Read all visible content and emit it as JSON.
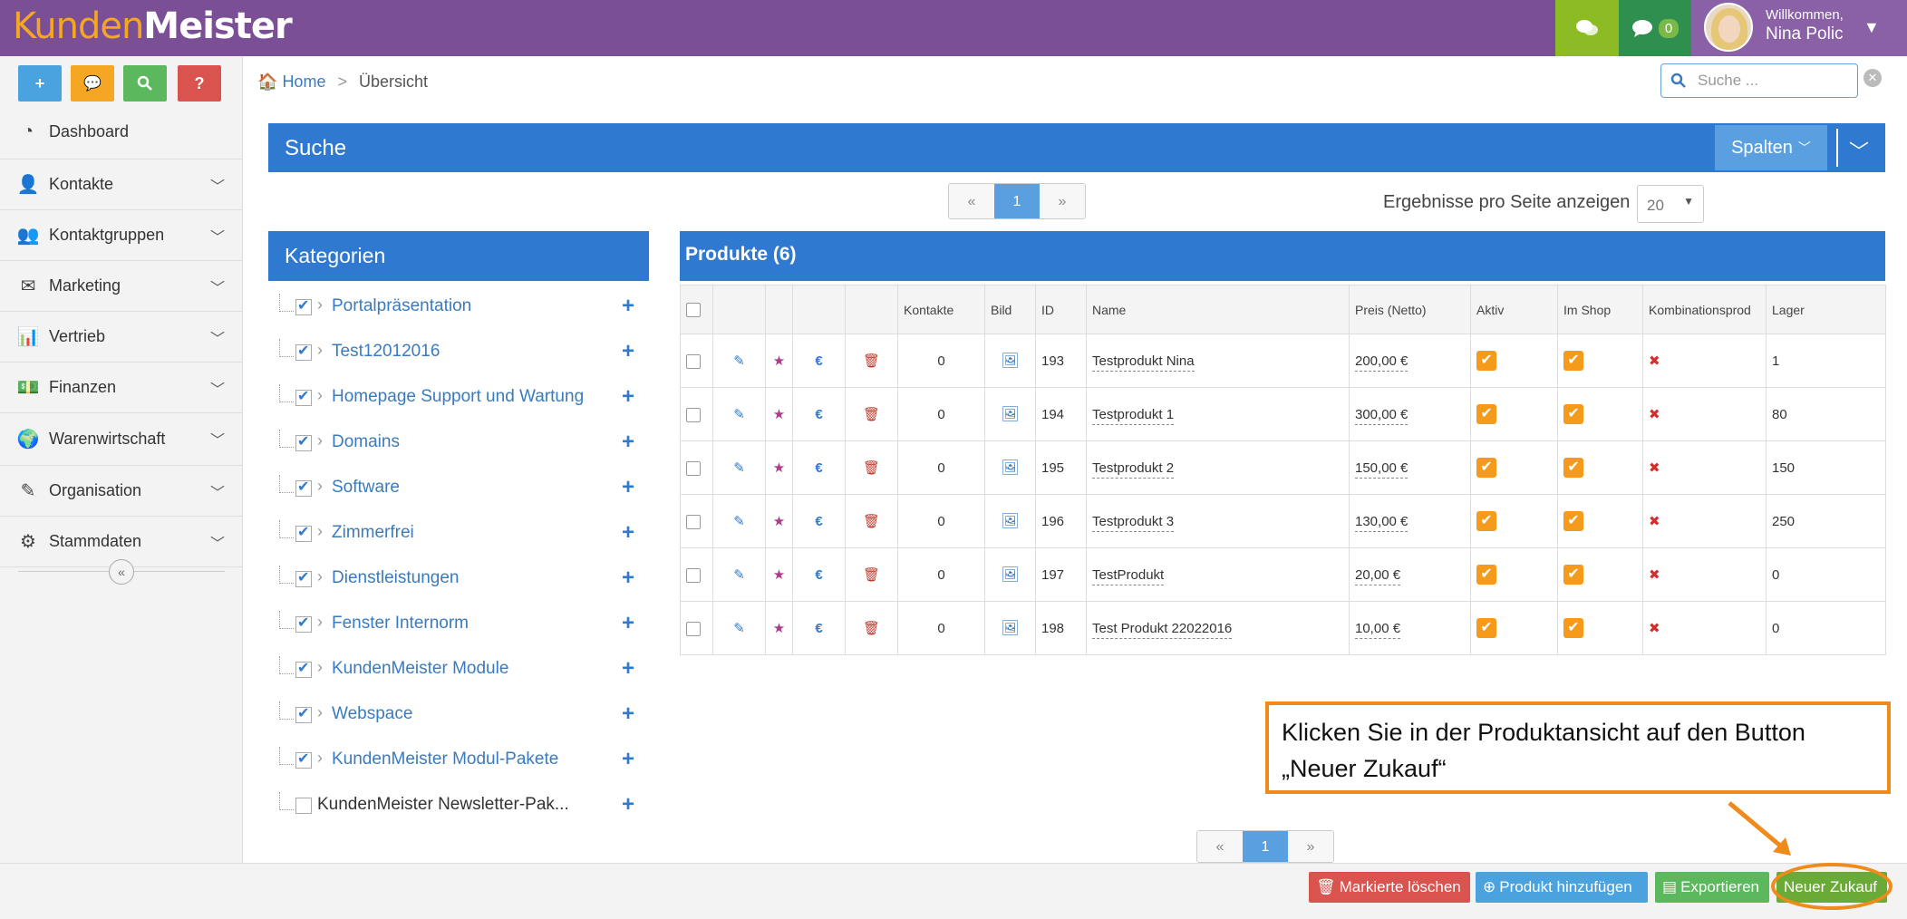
{
  "app": {
    "logo_part1": "Kunden",
    "logo_part2": "Meister"
  },
  "topbar": {
    "message_count": "0",
    "welcome": "Willkommen,",
    "user_name": "Nina Polic"
  },
  "quick_buttons": [
    {
      "icon": "plus-icon",
      "glyph": "+",
      "color": "#4aa3df"
    },
    {
      "icon": "chat-icon",
      "glyph": "💬",
      "color": "#f5a623"
    },
    {
      "icon": "search-icon",
      "glyph": "⚲",
      "color": "#5bb85c"
    },
    {
      "icon": "help-icon",
      "glyph": "?",
      "color": "#d9534f"
    }
  ],
  "sidebar": {
    "items": [
      {
        "label": "Dashboard",
        "icon": "dashboard-icon",
        "glyph": "◔",
        "expandable": false
      },
      {
        "label": "Kontakte",
        "icon": "user-icon",
        "glyph": "👤",
        "expandable": true
      },
      {
        "label": "Kontaktgruppen",
        "icon": "users-icon",
        "glyph": "👥",
        "expandable": true
      },
      {
        "label": "Marketing",
        "icon": "envelope-icon",
        "glyph": "✉",
        "expandable": true
      },
      {
        "label": "Vertrieb",
        "icon": "bar-chart-icon",
        "glyph": "📊",
        "expandable": true
      },
      {
        "label": "Finanzen",
        "icon": "money-icon",
        "glyph": "💵",
        "expandable": true
      },
      {
        "label": "Warenwirtschaft",
        "icon": "globe-icon",
        "glyph": "🌍",
        "expandable": true
      },
      {
        "label": "Organisation",
        "icon": "edit-icon",
        "glyph": "✎",
        "expandable": true
      },
      {
        "label": "Stammdaten",
        "icon": "gears-icon",
        "glyph": "⚙",
        "expandable": true
      }
    ]
  },
  "breadcrumb": {
    "home": "Home",
    "sep": ">",
    "current": "Übersicht"
  },
  "search": {
    "placeholder": "Suche ..."
  },
  "suche_panel": {
    "title": "Suche",
    "columns_button": "Spalten"
  },
  "pagination": {
    "prev": "«",
    "page": "1",
    "next": "»"
  },
  "per_page": {
    "label": "Ergebnisse pro Seite anzeigen",
    "value": "20"
  },
  "categories": {
    "title": "Kategorien",
    "items": [
      {
        "label": "Portalpräsentation",
        "checked": true
      },
      {
        "label": "Test12012016",
        "checked": true
      },
      {
        "label": "Homepage Support und Wartung",
        "checked": true
      },
      {
        "label": "Domains",
        "checked": true
      },
      {
        "label": "Software",
        "checked": true
      },
      {
        "label": "Zimmerfrei",
        "checked": true
      },
      {
        "label": "Dienstleistungen",
        "checked": true
      },
      {
        "label": "Fenster Internorm",
        "checked": true
      },
      {
        "label": "KundenMeister Module",
        "checked": true
      },
      {
        "label": "Webspace",
        "checked": true
      },
      {
        "label": "KundenMeister Modul-Pakete",
        "checked": true
      },
      {
        "label": "KundenMeister Newsletter-Pak...",
        "checked": false
      }
    ]
  },
  "products": {
    "title": "Produkte (6)",
    "columns": [
      "",
      "",
      "",
      "",
      "",
      "Kontakte",
      "Bild",
      "ID",
      "Name",
      "Preis (Netto)",
      "Aktiv",
      "Im Shop",
      "Kombinationsprod",
      "Lager"
    ],
    "rows": [
      {
        "kontakte": "0",
        "id": "193",
        "name": "Testprodukt Nina",
        "preis": "200,00 €",
        "lager": "1"
      },
      {
        "kontakte": "0",
        "id": "194",
        "name": "Testprodukt 1",
        "preis": "300,00 €",
        "lager": "80"
      },
      {
        "kontakte": "0",
        "id": "195",
        "name": "Testprodukt 2",
        "preis": "150,00 €",
        "lager": "150"
      },
      {
        "kontakte": "0",
        "id": "196",
        "name": "Testprodukt 3",
        "preis": "130,00 €",
        "lager": "250"
      },
      {
        "kontakte": "0",
        "id": "197",
        "name": "TestProdukt",
        "preis": "20,00 €",
        "lager": "0"
      },
      {
        "kontakte": "0",
        "id": "198",
        "name": "Test Produkt 22022016",
        "preis": "10,00 €",
        "lager": "0"
      }
    ]
  },
  "callout": {
    "text": "Klicken Sie in der Produktansicht auf den Button „Neuer Zukauf“",
    "color": "#f08a1a"
  },
  "footer": {
    "delete_label": "Markierte löschen",
    "add_label": "Produkt hinzufügen",
    "export_label": "Exportieren",
    "purchase_label": "Neuer Zukauf"
  },
  "colors": {
    "header": "#7a4f95",
    "primary": "#2f7ad0",
    "check": "#f59a1a",
    "delete": "#d9534f",
    "add": "#4aa3df",
    "export": "#5bb85c",
    "purchase": "#6aab38"
  }
}
